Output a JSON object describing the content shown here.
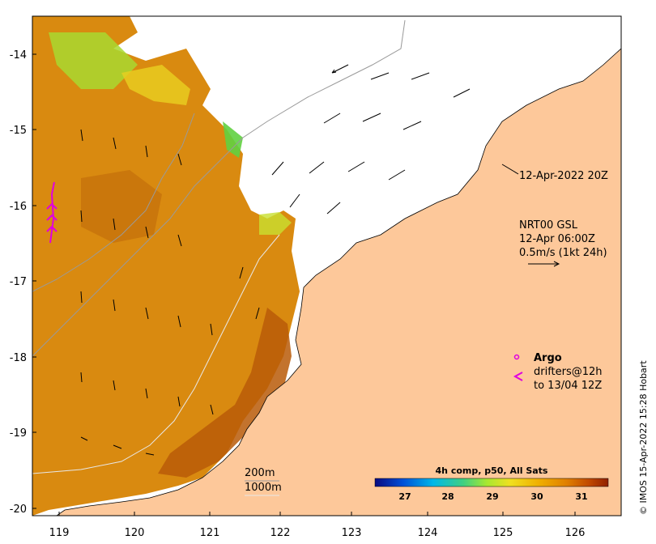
{
  "map": {
    "lon_range": [
      118.7,
      126.7
    ],
    "lat_range": [
      -20.1,
      -13.5
    ],
    "lon_ticks": [
      "119",
      "120",
      "121",
      "122",
      "123",
      "124",
      "125",
      "126"
    ],
    "lat_ticks": [
      "-14",
      "-15",
      "-16",
      "-17",
      "-18",
      "-19",
      "-20"
    ]
  },
  "annotations": {
    "timestamp": "12-Apr-2022 20Z",
    "nrt_line1": "NRT00 GSL",
    "nrt_line2": "12-Apr 06:00Z",
    "nrt_line3": "0.5m/s (1kt 24h)",
    "argo_label": "Argo",
    "drifter_line1": "drifters@12h",
    "drifter_line2": "to 13/04 12Z",
    "depth_200": "200m",
    "depth_1000": "1000m",
    "credit": "© IMOS 15-Apr-2022 15:28 Hobart"
  },
  "colorbar": {
    "title": "4h comp, p50, All Sats",
    "ticks": [
      "27",
      "28",
      "29",
      "30",
      "31"
    ],
    "colors": [
      "#0a0a80",
      "#0050d8",
      "#00b8e8",
      "#40d080",
      "#a8e830",
      "#f0e020",
      "#f0b000",
      "#e08000",
      "#c04800",
      "#902000"
    ]
  },
  "colors": {
    "land": "#fdc89a",
    "sst_warm": "#d98a10",
    "sst_hot": "#b85a08",
    "argo": "#e000e0"
  }
}
